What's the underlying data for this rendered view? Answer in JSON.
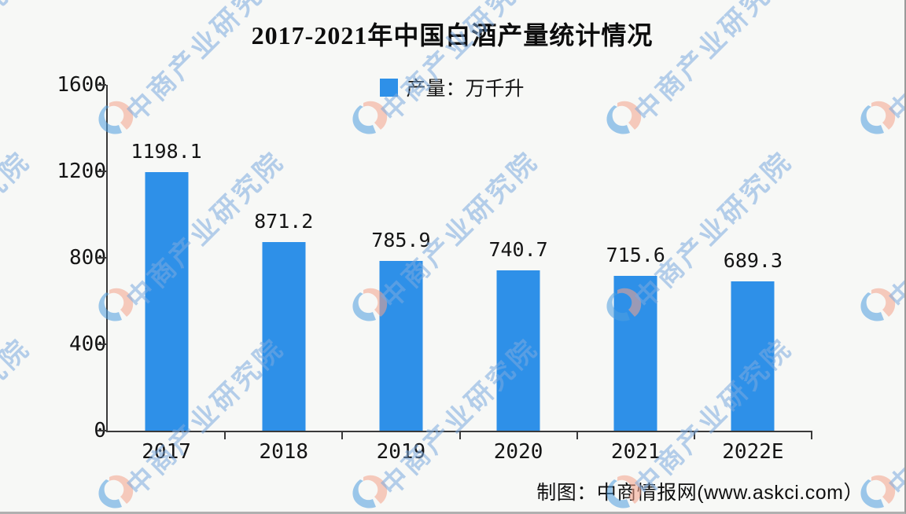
{
  "title": "2017-2021年中国白酒产量统计情况",
  "legend": {
    "label": "产量：万千升",
    "swatch_color": "#2e90e8"
  },
  "footer": {
    "credit": "制图：中商情报网(www.askci.com）"
  },
  "watermark": {
    "text": "中商产业研究院",
    "logo": "askci-logo",
    "text_color": "#7caade",
    "logo_blue": "#4f9fe0",
    "logo_salmon": "#f4a38c"
  },
  "chart_data": {
    "type": "bar",
    "title": "2017-2021年中国白酒产量统计情况",
    "categories": [
      "2017",
      "2018",
      "2019",
      "2020",
      "2021",
      "2022E"
    ],
    "series": [
      {
        "name": "产量：万千升",
        "values": [
          1198.1,
          871.2,
          785.9,
          740.7,
          715.6,
          689.3
        ]
      }
    ],
    "value_labels": [
      "1198.1",
      "871.2",
      "785.9",
      "740.7",
      "715.6",
      "689.3"
    ],
    "xlabel": "",
    "ylabel": "",
    "ylim": [
      0,
      1600
    ],
    "yticks": [
      0,
      400,
      800,
      1200,
      1600
    ],
    "grid": false,
    "legend_position": "top-center",
    "bar_color": "#2e90e8"
  }
}
